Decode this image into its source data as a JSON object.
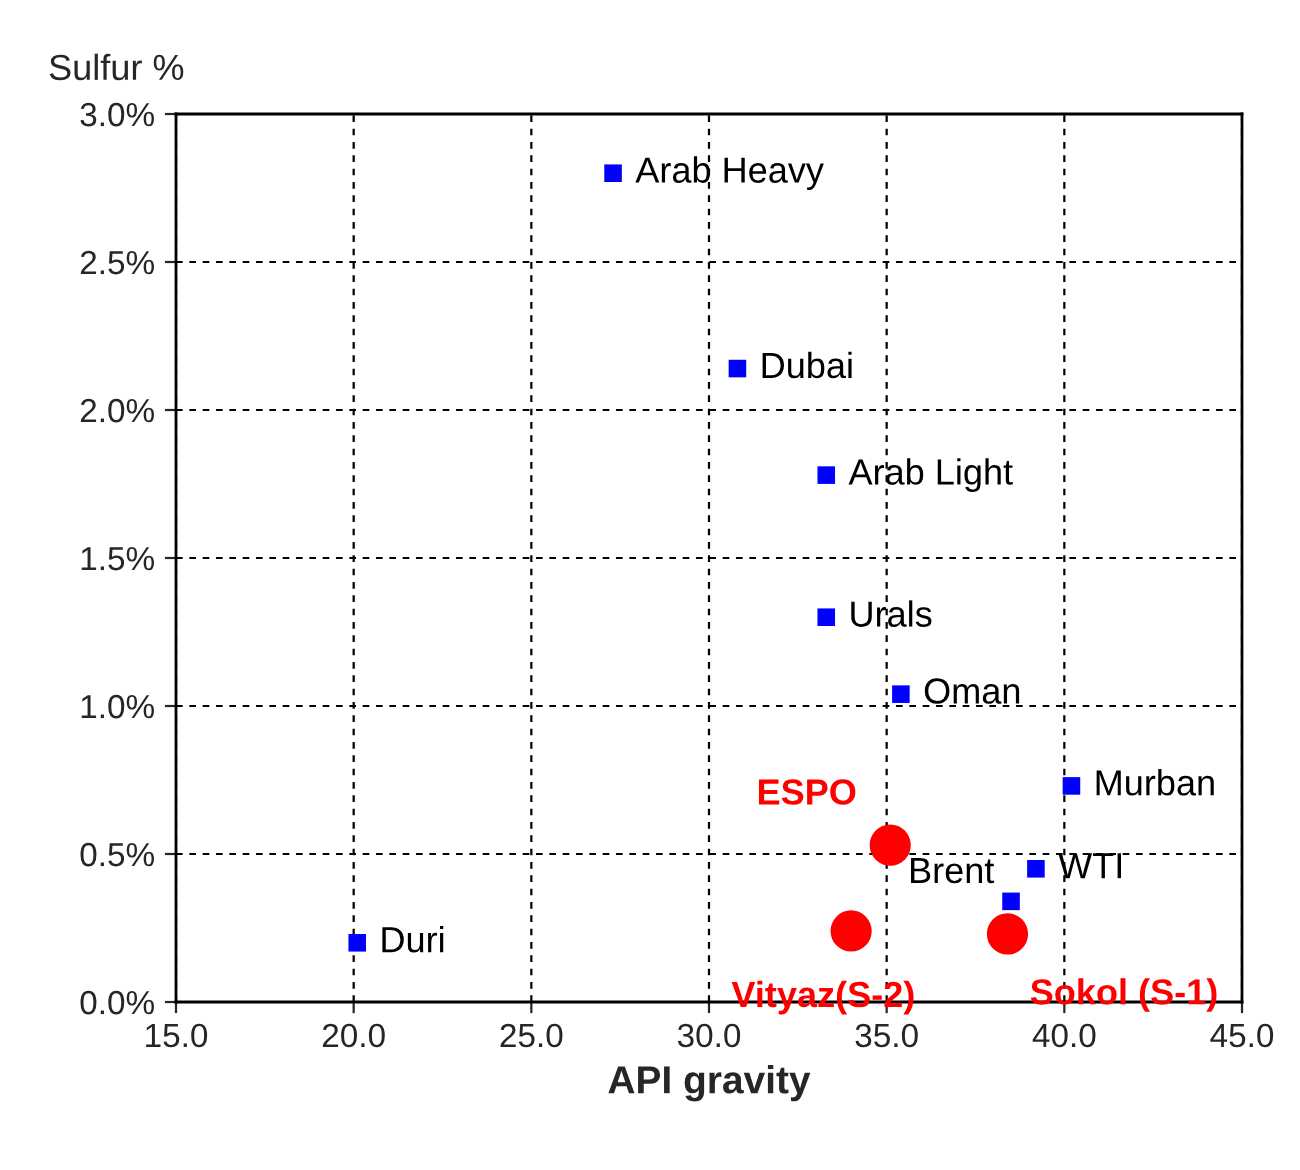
{
  "chart_data": {
    "type": "scatter",
    "xlabel": "API gravity",
    "ylabel": "Sulfur %",
    "xlim": [
      15,
      45
    ],
    "xticks": [
      {
        "value": 15,
        "label": "15.0"
      },
      {
        "value": 20,
        "label": "20.0"
      },
      {
        "value": 25,
        "label": "25.0"
      },
      {
        "value": 30,
        "label": "30.0"
      },
      {
        "value": 35,
        "label": "35.0"
      },
      {
        "value": 40,
        "label": "40.0"
      },
      {
        "value": 45,
        "label": "45.0"
      }
    ],
    "ylim": [
      0,
      3
    ],
    "yticks": [
      {
        "value": 0,
        "label": "0.0%"
      },
      {
        "value": 0.5,
        "label": "0.5%"
      },
      {
        "value": 1,
        "label": "1.0%"
      },
      {
        "value": 1.5,
        "label": "1.5%"
      },
      {
        "value": 2,
        "label": "2.0%"
      },
      {
        "value": 2.5,
        "label": "2.5%"
      },
      {
        "value": 3,
        "label": "3.0%"
      }
    ],
    "grid": true,
    "series": [
      {
        "color": "#0000ff",
        "marker": "square",
        "x": [
          27.3,
          30.8,
          33.3,
          33.3,
          35.4,
          40.2,
          39.2,
          38.5,
          20.1
        ],
        "values": [
          2.8,
          2.14,
          1.78,
          1.3,
          1.04,
          0.73,
          0.45,
          0.34,
          0.2
        ],
        "value_labels": [
          "Arab Heavy",
          "Dubai",
          "Arab Light",
          "Urals",
          "Oman",
          "Murban",
          "WTI",
          "Brent",
          "Duri"
        ]
      },
      {
        "color": "#ff0000",
        "marker": "circle",
        "x": [
          35.1,
          34.0,
          38.4
        ],
        "values": [
          0.53,
          0.24,
          0.23
        ],
        "value_labels": [
          "ESPO",
          "Vityaz(S-2)",
          "Sokol (S-1)"
        ]
      }
    ]
  }
}
